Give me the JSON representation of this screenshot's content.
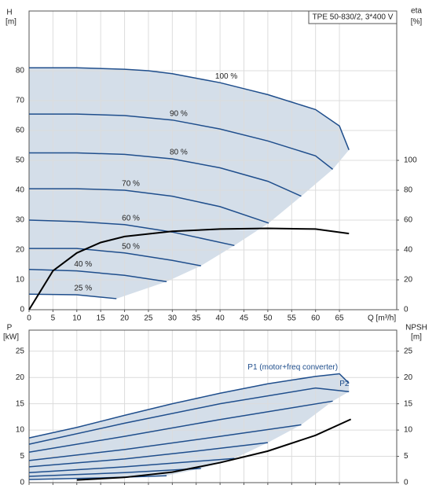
{
  "chart_data": [
    {
      "type": "line",
      "title": "TPE 50-830/2, 3*400 V",
      "y_label": "H",
      "y_unit": "[m]",
      "y2_label": "eta",
      "y2_unit": "[%]",
      "x_label": "Q [m³/h]",
      "xlim": [
        0,
        77
      ],
      "xticks": [
        0,
        5,
        10,
        15,
        20,
        25,
        30,
        35,
        40,
        45,
        50,
        55,
        60,
        65
      ],
      "ylim": [
        0,
        100
      ],
      "yticks": [
        0,
        10,
        20,
        30,
        40,
        50,
        60,
        70,
        80
      ],
      "y2lim": [
        0,
        200
      ],
      "y2ticks": [
        0,
        20,
        40,
        60,
        80,
        100
      ],
      "grid": true,
      "shade": "#c5d3e2",
      "series": [
        {
          "name": "100 %",
          "color": "#1f4e8c",
          "x": [
            0,
            10,
            20,
            25,
            30,
            35,
            40,
            45,
            50,
            55,
            60,
            65,
            67
          ],
          "values": [
            81,
            81,
            80.5,
            80,
            79,
            77.5,
            76,
            74,
            72,
            69.5,
            67,
            61.5,
            53.5
          ]
        },
        {
          "name": "90 %",
          "color": "#1f4e8c",
          "x": [
            0,
            10,
            20,
            30,
            40,
            50,
            60,
            63.6
          ],
          "values": [
            65.5,
            65.5,
            65,
            63.5,
            60.5,
            56.5,
            51.5,
            47
          ]
        },
        {
          "name": "80 %",
          "color": "#1f4e8c",
          "x": [
            0,
            10,
            20,
            30,
            40,
            50,
            57
          ],
          "values": [
            52.5,
            52.5,
            52,
            50.5,
            47.5,
            43,
            38
          ]
        },
        {
          "name": "70 %",
          "color": "#1f4e8c",
          "x": [
            0,
            10,
            20,
            30,
            40,
            50.2
          ],
          "values": [
            40.5,
            40.5,
            40,
            38,
            34.5,
            29
          ]
        },
        {
          "name": "60 %",
          "color": "#1f4e8c",
          "x": [
            0,
            10,
            20,
            30,
            43
          ],
          "values": [
            30,
            29.5,
            28.5,
            26,
            21.5
          ]
        },
        {
          "name": "50 %",
          "color": "#1f4e8c",
          "x": [
            0,
            10,
            20,
            30,
            36
          ],
          "values": [
            20.5,
            20.5,
            19,
            16.5,
            14.7
          ]
        },
        {
          "name": "40 %",
          "color": "#1f4e8c",
          "x": [
            0,
            10,
            20,
            28.8
          ],
          "values": [
            13.5,
            13,
            11.5,
            9.4
          ]
        },
        {
          "name": "25 %",
          "color": "#1f4e8c",
          "x": [
            0,
            10,
            18.3
          ],
          "values": [
            5.2,
            5,
            3.7
          ]
        },
        {
          "color": "#000000",
          "axis": "y2",
          "x": [
            0,
            5,
            10,
            15,
            20,
            30,
            40,
            50,
            60,
            67
          ],
          "values": [
            0,
            26,
            38,
            45,
            49,
            52.5,
            54,
            54.5,
            54,
            51
          ]
        }
      ]
    },
    {
      "type": "line",
      "y_label": "P",
      "y_unit": "[kW]",
      "y2_label": "NPSH",
      "y2_unit": "[m]",
      "xlim": [
        0,
        77
      ],
      "xticks": [
        0,
        5,
        10,
        15,
        20,
        25,
        30,
        35,
        40,
        45,
        50,
        55,
        60,
        65
      ],
      "ylim": [
        0,
        29
      ],
      "yticks": [
        0,
        5,
        10,
        15,
        20,
        25
      ],
      "y2lim": [
        0,
        29
      ],
      "y2ticks": [
        0,
        5,
        10,
        15,
        20,
        25
      ],
      "grid": true,
      "shade": "#c5d3e2",
      "series": [
        {
          "name": "P1 (motor+freq converter)",
          "color": "#1f4e8c",
          "x": [
            0,
            10,
            20,
            30,
            40,
            50,
            60,
            65,
            67
          ],
          "values": [
            8.5,
            10.5,
            12.8,
            15,
            17,
            18.8,
            20.2,
            20.7,
            18.9
          ]
        },
        {
          "name": "P2",
          "color": "#1f4e8c",
          "x": [
            0,
            20,
            40,
            60,
            67
          ],
          "values": [
            7.3,
            11.3,
            15,
            18,
            17.3
          ]
        },
        {
          "color": "#1f4e8c",
          "x": [
            0,
            20,
            40,
            63.6
          ],
          "values": [
            5.8,
            8.8,
            12,
            15.5
          ]
        },
        {
          "color": "#1f4e8c",
          "x": [
            0,
            20,
            40,
            57
          ],
          "values": [
            4.2,
            6.3,
            8.8,
            11
          ]
        },
        {
          "color": "#1f4e8c",
          "x": [
            0,
            20,
            35,
            50
          ],
          "values": [
            3,
            4.5,
            6,
            7.6
          ]
        },
        {
          "color": "#1f4e8c",
          "x": [
            0,
            20,
            43
          ],
          "values": [
            1.9,
            3,
            4.6
          ]
        },
        {
          "color": "#1f4e8c",
          "x": [
            0,
            20,
            36
          ],
          "values": [
            1.2,
            1.9,
            2.7
          ]
        },
        {
          "color": "#1f4e8c",
          "x": [
            0,
            15,
            28.8
          ],
          "values": [
            0.6,
            0.9,
            1.3
          ]
        },
        {
          "color": "#000000",
          "axis": "y2",
          "x": [
            10,
            20,
            30,
            40,
            50,
            60,
            67.4
          ],
          "values": [
            0.5,
            1,
            2,
            3.8,
            6,
            9,
            12.05
          ]
        }
      ]
    }
  ]
}
